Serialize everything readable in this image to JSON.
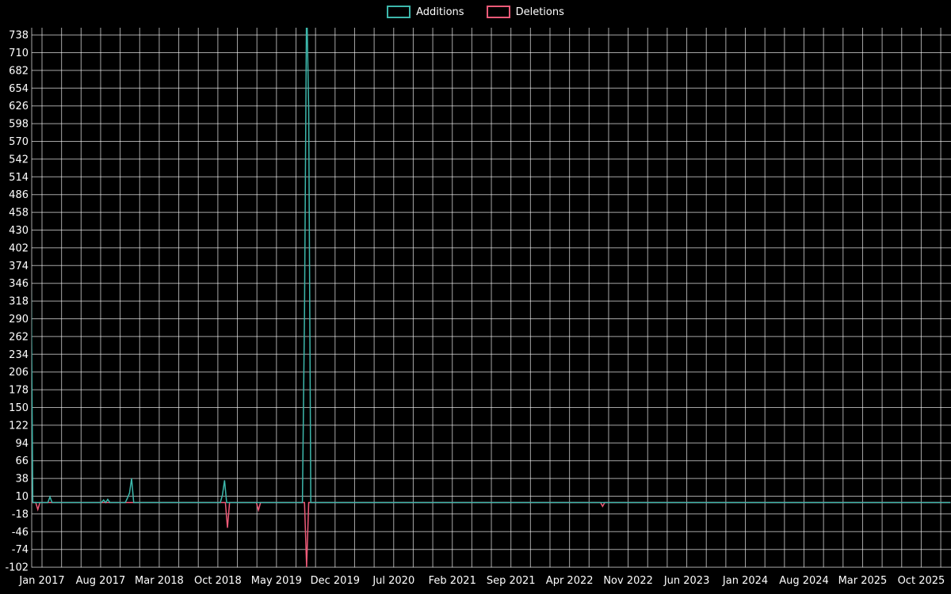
{
  "colors": {
    "background": "#000000",
    "gridline": "rgba(255,255,255,0.65)",
    "text": "#ffffff",
    "additions": "#3db8ac",
    "deletions": "#ee5a78"
  },
  "legend": {
    "items": [
      {
        "label": "Additions",
        "color": "#3db8ac"
      },
      {
        "label": "Deletions",
        "color": "#ee5a78"
      }
    ]
  },
  "chart_data": {
    "type": "line",
    "title": "",
    "xlabel": "",
    "ylabel": "",
    "legend_position": "top-center",
    "grid": true,
    "x_tick_interval_months": 7,
    "x_gridline_interval_months": 2.3333,
    "x_tick_labels": [
      "Jan 2017",
      "Aug 2017",
      "Mar 2018",
      "Oct 2018",
      "May 2019",
      "Dec 2019",
      "Jul 2020",
      "Feb 2021",
      "Sep 2021",
      "Apr 2022",
      "Nov 2022",
      "Jun 2023",
      "Jan 2024",
      "Aug 2024",
      "Mar 2025",
      "Oct 2025"
    ],
    "y_ticks": [
      -102,
      -74,
      -46,
      -18,
      10,
      38,
      66,
      94,
      122,
      150,
      178,
      206,
      234,
      262,
      290,
      318,
      346,
      374,
      402,
      430,
      458,
      486,
      514,
      542,
      570,
      598,
      626,
      654,
      682,
      710,
      738
    ],
    "ylim": [
      -103,
      749
    ],
    "x_unit": "months since Jan 2017, weekly samples",
    "series": [
      {
        "name": "Additions",
        "color": "#3db8ac",
        "points": [
          [
            -1.6,
            0
          ],
          [
            -1.35,
            430
          ],
          [
            -1.1,
            0
          ],
          [
            0.7,
            0
          ],
          [
            0.95,
            9
          ],
          [
            1.2,
            0
          ],
          [
            7.1,
            0
          ],
          [
            7.35,
            4
          ],
          [
            7.6,
            0
          ],
          [
            7.85,
            5
          ],
          [
            8.1,
            0
          ],
          [
            9.95,
            0
          ],
          [
            10.2,
            7
          ],
          [
            10.45,
            15
          ],
          [
            10.7,
            38
          ],
          [
            10.95,
            0
          ],
          [
            21.3,
            0
          ],
          [
            21.55,
            12
          ],
          [
            21.8,
            35
          ],
          [
            22.05,
            0
          ],
          [
            31.1,
            0
          ],
          [
            31.35,
            300
          ],
          [
            31.6,
            800
          ],
          [
            31.85,
            620
          ],
          [
            32.1,
            0
          ],
          [
            108.5,
            0
          ]
        ]
      },
      {
        "name": "Deletions",
        "color": "#ee5a78",
        "points": [
          [
            -1.6,
            0
          ],
          [
            -0.75,
            0
          ],
          [
            -0.5,
            -11
          ],
          [
            -0.25,
            0
          ],
          [
            21.9,
            0
          ],
          [
            22.15,
            -40
          ],
          [
            22.4,
            0
          ],
          [
            25.6,
            0
          ],
          [
            25.85,
            -12
          ],
          [
            26.1,
            0
          ],
          [
            31.35,
            0
          ],
          [
            31.6,
            -102
          ],
          [
            31.85,
            0
          ],
          [
            66.7,
            0
          ],
          [
            66.95,
            -6
          ],
          [
            67.2,
            0
          ],
          [
            108.5,
            0
          ]
        ]
      }
    ]
  }
}
